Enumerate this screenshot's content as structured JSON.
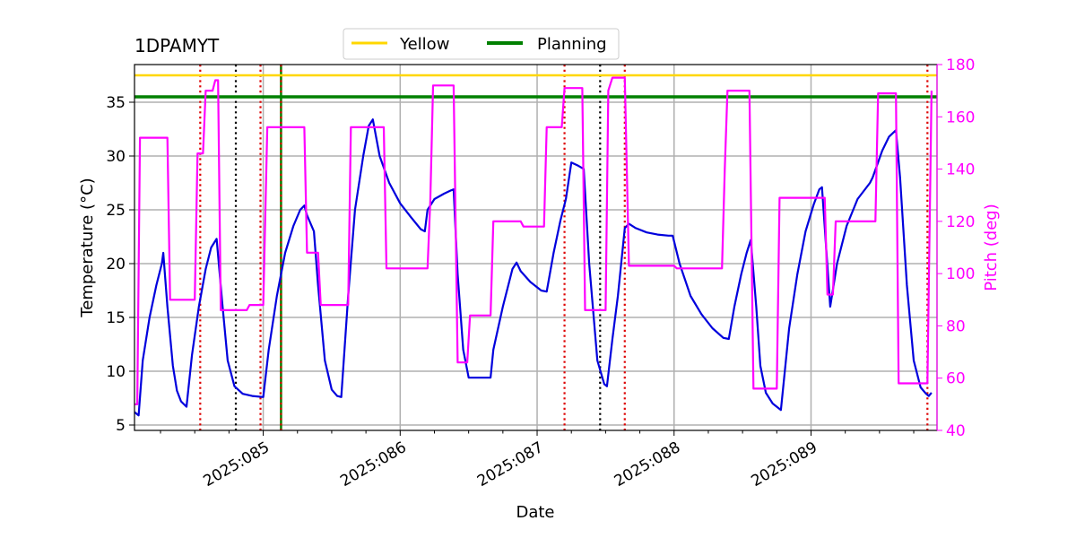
{
  "chart_data": {
    "type": "line",
    "title": "1DPAMYT",
    "xlabel": "Date",
    "ylabel": "Temperature ($^\\circ$C)",
    "ylabel_display": "Temperature (°C)",
    "y2label": "Pitch (deg)",
    "xlim": [
      84.06,
      89.92
    ],
    "ylim": [
      4.5,
      38.5
    ],
    "y2lim": [
      40,
      180
    ],
    "x_ticks": [
      {
        "value": 85,
        "label": "2025:085"
      },
      {
        "value": 86,
        "label": "2025:086"
      },
      {
        "value": 87,
        "label": "2025:087"
      },
      {
        "value": 88,
        "label": "2025:088"
      },
      {
        "value": 89,
        "label": "2025:089"
      }
    ],
    "y_ticks": [
      5,
      10,
      15,
      20,
      25,
      30,
      35
    ],
    "y2_ticks": [
      40,
      60,
      80,
      100,
      120,
      140,
      160,
      180
    ],
    "grid": true,
    "legend_position": "top-center",
    "legend": [
      {
        "label": "Yellow",
        "color": "#ffd700"
      },
      {
        "label": "Planning",
        "color": "#008000"
      }
    ],
    "limits": [
      {
        "name": "Yellow",
        "y": 37.5,
        "color": "#ffd700"
      },
      {
        "name": "Planning",
        "y": 35.5,
        "color": "#008000"
      }
    ],
    "vlines": [
      {
        "x": 84.54,
        "color": "#dd0000",
        "style": "dotted"
      },
      {
        "x": 84.8,
        "color": "#000000",
        "style": "dotted"
      },
      {
        "x": 84.98,
        "color": "#dd0000",
        "style": "dotted"
      },
      {
        "x": 85.13,
        "color": "#008000",
        "style": "solid"
      },
      {
        "x": 85.13,
        "color": "#dd0000",
        "style": "dotted"
      },
      {
        "x": 87.2,
        "color": "#dd0000",
        "style": "dotted"
      },
      {
        "x": 87.46,
        "color": "#000000",
        "style": "dotted"
      },
      {
        "x": 87.64,
        "color": "#dd0000",
        "style": "dotted"
      },
      {
        "x": 89.85,
        "color": "#dd0000",
        "style": "dotted"
      }
    ],
    "series": [
      {
        "axis": "left",
        "color": "#0000dd",
        "points": [
          [
            84.06,
            6.2
          ],
          [
            84.09,
            5.9
          ],
          [
            84.12,
            11.0
          ],
          [
            84.17,
            15.0
          ],
          [
            84.22,
            18.0
          ],
          [
            84.26,
            20.0
          ],
          [
            84.27,
            21.0
          ],
          [
            84.3,
            16.0
          ],
          [
            84.34,
            10.5
          ],
          [
            84.37,
            8.2
          ],
          [
            84.4,
            7.2
          ],
          [
            84.44,
            6.7
          ],
          [
            84.48,
            11.5
          ],
          [
            84.53,
            16.0
          ],
          [
            84.58,
            19.5
          ],
          [
            84.62,
            21.5
          ],
          [
            84.66,
            22.3
          ],
          [
            84.7,
            16.5
          ],
          [
            84.74,
            11.0
          ],
          [
            84.79,
            8.6
          ],
          [
            84.85,
            7.9
          ],
          [
            84.92,
            7.7
          ],
          [
            85.0,
            7.6
          ],
          [
            85.04,
            12.0
          ],
          [
            85.1,
            17.0
          ],
          [
            85.16,
            21.0
          ],
          [
            85.22,
            23.5
          ],
          [
            85.27,
            25.0
          ],
          [
            85.3,
            25.4
          ],
          [
            85.32,
            24.5
          ],
          [
            85.37,
            23.0
          ],
          [
            85.4,
            18.0
          ],
          [
            85.45,
            11.0
          ],
          [
            85.5,
            8.3
          ],
          [
            85.54,
            7.7
          ],
          [
            85.57,
            7.6
          ],
          [
            85.62,
            17.0
          ],
          [
            85.67,
            25.0
          ],
          [
            85.73,
            30.0
          ],
          [
            85.77,
            32.8
          ],
          [
            85.8,
            33.4
          ],
          [
            85.85,
            30.0
          ],
          [
            85.92,
            27.5
          ],
          [
            86.0,
            25.6
          ],
          [
            86.08,
            24.3
          ],
          [
            86.15,
            23.2
          ],
          [
            86.18,
            23.0
          ],
          [
            86.2,
            25.0
          ],
          [
            86.25,
            26.0
          ],
          [
            86.32,
            26.5
          ],
          [
            86.37,
            26.8
          ],
          [
            86.39,
            26.9
          ],
          [
            86.42,
            19.0
          ],
          [
            86.46,
            12.0
          ],
          [
            86.5,
            9.4
          ],
          [
            86.56,
            9.4
          ],
          [
            86.66,
            9.4
          ],
          [
            86.68,
            12.0
          ],
          [
            86.75,
            16.0
          ],
          [
            86.82,
            19.5
          ],
          [
            86.85,
            20.1
          ],
          [
            86.88,
            19.3
          ],
          [
            86.95,
            18.3
          ],
          [
            87.03,
            17.5
          ],
          [
            87.07,
            17.4
          ],
          [
            87.12,
            21.0
          ],
          [
            87.17,
            24.0
          ],
          [
            87.21,
            26.0
          ],
          [
            87.25,
            29.4
          ],
          [
            87.3,
            29.1
          ],
          [
            87.34,
            28.8
          ],
          [
            87.38,
            20.0
          ],
          [
            87.44,
            11.0
          ],
          [
            87.49,
            8.8
          ],
          [
            87.51,
            8.6
          ],
          [
            87.55,
            13.0
          ],
          [
            87.59,
            17.0
          ],
          [
            87.64,
            23.3
          ],
          [
            87.67,
            23.7
          ],
          [
            87.72,
            23.3
          ],
          [
            87.8,
            22.9
          ],
          [
            87.88,
            22.7
          ],
          [
            87.96,
            22.6
          ],
          [
            87.99,
            22.6
          ],
          [
            88.04,
            20.0
          ],
          [
            88.12,
            17.0
          ],
          [
            88.2,
            15.3
          ],
          [
            88.28,
            14.0
          ],
          [
            88.36,
            13.1
          ],
          [
            88.4,
            13.0
          ],
          [
            88.44,
            16.0
          ],
          [
            88.49,
            19.0
          ],
          [
            88.53,
            21.0
          ],
          [
            88.56,
            22.2
          ],
          [
            88.6,
            16.0
          ],
          [
            88.63,
            10.5
          ],
          [
            88.67,
            8.0
          ],
          [
            88.72,
            7.0
          ],
          [
            88.78,
            6.4
          ],
          [
            88.84,
            14.0
          ],
          [
            88.9,
            19.0
          ],
          [
            88.96,
            23.0
          ],
          [
            89.02,
            25.5
          ],
          [
            89.06,
            26.9
          ],
          [
            89.08,
            27.1
          ],
          [
            89.14,
            16.0
          ],
          [
            89.19,
            20.0
          ],
          [
            89.26,
            23.5
          ],
          [
            89.34,
            26.0
          ],
          [
            89.43,
            27.5
          ],
          [
            89.45,
            28.0
          ],
          [
            89.52,
            30.5
          ],
          [
            89.57,
            31.8
          ],
          [
            89.62,
            32.4
          ],
          [
            89.65,
            28.0
          ],
          [
            89.7,
            18.0
          ],
          [
            89.75,
            11.0
          ],
          [
            89.8,
            8.5
          ],
          [
            89.84,
            7.9
          ],
          [
            89.86,
            7.7
          ],
          [
            89.88,
            8.0
          ]
        ]
      },
      {
        "axis": "right",
        "color": "#ff00ff",
        "points": [
          [
            84.06,
            50
          ],
          [
            84.08,
            50
          ],
          [
            84.1,
            152
          ],
          [
            84.3,
            152
          ],
          [
            84.32,
            90
          ],
          [
            84.5,
            90
          ],
          [
            84.52,
            146
          ],
          [
            84.56,
            146
          ],
          [
            84.58,
            170
          ],
          [
            84.63,
            170
          ],
          [
            84.65,
            174
          ],
          [
            84.67,
            174
          ],
          [
            84.69,
            86
          ],
          [
            84.88,
            86
          ],
          [
            84.9,
            88
          ],
          [
            85.0,
            88
          ],
          [
            85.03,
            156
          ],
          [
            85.3,
            156
          ],
          [
            85.32,
            108
          ],
          [
            85.4,
            108
          ],
          [
            85.42,
            88
          ],
          [
            85.62,
            88
          ],
          [
            85.64,
            156
          ],
          [
            85.88,
            156
          ],
          [
            85.9,
            102
          ],
          [
            86.2,
            102
          ],
          [
            86.22,
            128
          ],
          [
            86.24,
            172
          ],
          [
            86.39,
            172
          ],
          [
            86.42,
            66
          ],
          [
            86.49,
            66
          ],
          [
            86.51,
            84
          ],
          [
            86.66,
            84
          ],
          [
            86.68,
            120
          ],
          [
            86.88,
            120
          ],
          [
            86.9,
            118
          ],
          [
            87.05,
            118
          ],
          [
            87.07,
            156
          ],
          [
            87.18,
            156
          ],
          [
            87.2,
            171
          ],
          [
            87.33,
            171
          ],
          [
            87.35,
            86
          ],
          [
            87.5,
            86
          ],
          [
            87.52,
            170
          ],
          [
            87.55,
            175
          ],
          [
            87.64,
            175
          ],
          [
            87.67,
            103
          ],
          [
            88.0,
            103
          ],
          [
            88.02,
            102
          ],
          [
            88.35,
            102
          ],
          [
            88.37,
            140
          ],
          [
            88.39,
            170
          ],
          [
            88.55,
            170
          ],
          [
            88.58,
            56
          ],
          [
            88.75,
            56
          ],
          [
            88.77,
            129
          ],
          [
            89.1,
            129
          ],
          [
            89.12,
            92
          ],
          [
            89.16,
            92
          ],
          [
            89.18,
            120
          ],
          [
            89.47,
            120
          ],
          [
            89.49,
            169
          ],
          [
            89.62,
            169
          ],
          [
            89.64,
            58
          ],
          [
            89.85,
            58
          ],
          [
            89.88,
            170
          ]
        ]
      }
    ]
  }
}
